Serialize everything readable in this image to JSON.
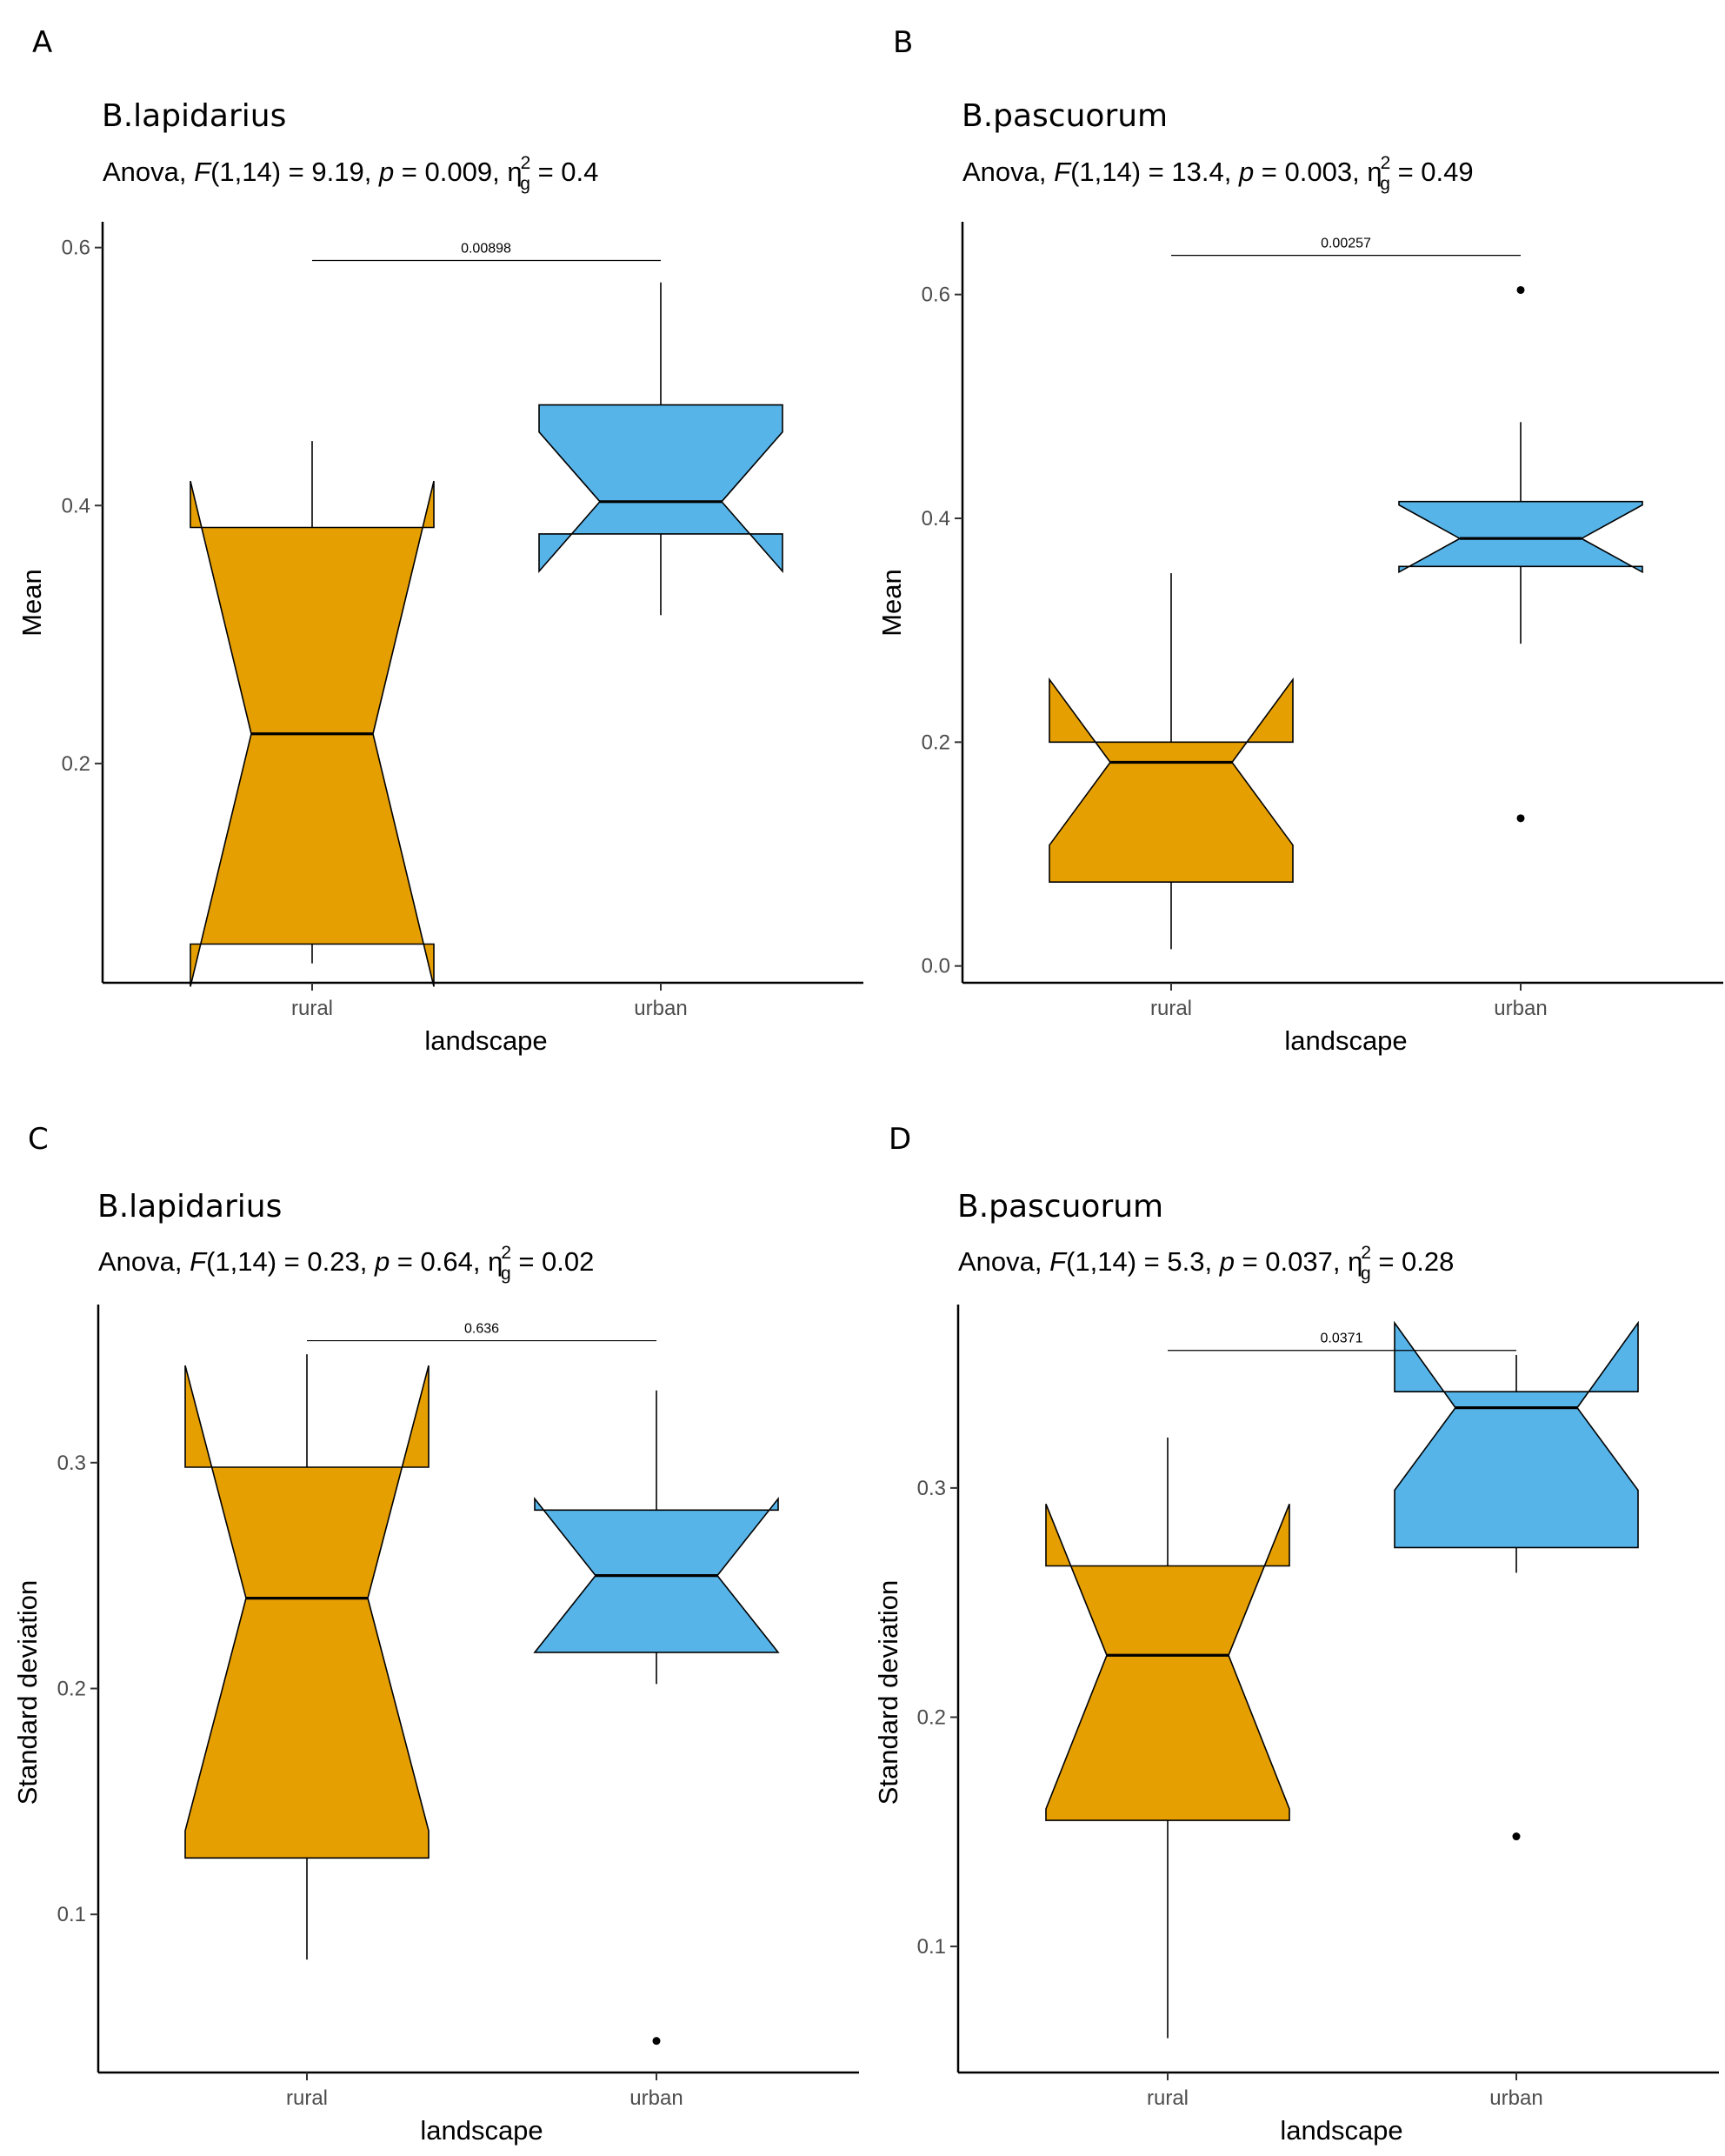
{
  "colors": {
    "rural": "#E69F00",
    "urban": "#56B4E9",
    "stroke": "#000000"
  },
  "chart_data": [
    {
      "panel": "A",
      "type": "boxplot",
      "notched": true,
      "title": "B.lapidarius",
      "subtitle": {
        "test": "Anova, ",
        "stat": "F",
        "df": "(1,14) = 9.19, ",
        "p_sym": "p",
        "p_val": " = 0.009, ",
        "eta": "η",
        "eta_sub": "g",
        "eta_sup": "2",
        "eta_val": " = 0.4"
      },
      "xlabel": "landscape",
      "ylabel": "Mean",
      "categories": [
        "rural",
        "urban"
      ],
      "ylim": [
        0.03,
        0.62
      ],
      "yticks": [
        0.2,
        0.4,
        0.6
      ],
      "ytick_labels": [
        "0.2",
        "0.4",
        "0.6"
      ],
      "boxes": [
        {
          "name": "rural",
          "whisker_low": 0.045,
          "q1": 0.06,
          "median": 0.223,
          "q3": 0.383,
          "whisker_high": 0.45,
          "notch_low": 0.027,
          "notch_high": 0.419,
          "outliers": []
        },
        {
          "name": "urban",
          "whisker_low": 0.315,
          "q1": 0.378,
          "median": 0.403,
          "q3": 0.478,
          "whisker_high": 0.573,
          "notch_low": 0.349,
          "notch_high": 0.457,
          "outliers": []
        }
      ],
      "bracket": {
        "label": "0.00898",
        "y": 0.59
      }
    },
    {
      "panel": "B",
      "type": "boxplot",
      "notched": true,
      "title": "B.pascuorum",
      "subtitle": {
        "test": "Anova, ",
        "stat": "F",
        "df": "(1,14) = 13.4, ",
        "p_sym": "p",
        "p_val": " = 0.003, ",
        "eta": "η",
        "eta_sub": "g",
        "eta_sup": "2",
        "eta_val": " = 0.49"
      },
      "xlabel": "landscape",
      "ylabel": "Mean",
      "categories": [
        "rural",
        "urban"
      ],
      "ylim": [
        -0.015,
        0.665
      ],
      "yticks": [
        0.0,
        0.2,
        0.4,
        0.6
      ],
      "ytick_labels": [
        "0.0",
        "0.2",
        "0.4",
        "0.6"
      ],
      "boxes": [
        {
          "name": "rural",
          "whisker_low": 0.015,
          "q1": 0.075,
          "median": 0.182,
          "q3": 0.2,
          "whisker_high": 0.351,
          "notch_low": 0.108,
          "notch_high": 0.256,
          "outliers": []
        },
        {
          "name": "urban",
          "whisker_low": 0.288,
          "q1": 0.357,
          "median": 0.382,
          "q3": 0.415,
          "whisker_high": 0.486,
          "notch_low": 0.352,
          "notch_high": 0.412,
          "outliers": [
            0.132,
            0.604
          ]
        }
      ],
      "bracket": {
        "label": "0.00257",
        "y": 0.635
      }
    },
    {
      "panel": "C",
      "type": "boxplot",
      "notched": true,
      "title": "B.lapidarius",
      "subtitle": {
        "test": "Anova, ",
        "stat": "F",
        "df": "(1,14) = 0.23, ",
        "p_sym": "p",
        "p_val": " = 0.64, ",
        "eta": "η",
        "eta_sub": "g",
        "eta_sup": "2",
        "eta_val": " = 0.02"
      },
      "xlabel": "landscape",
      "ylabel": "Standard deviation",
      "categories": [
        "rural",
        "urban"
      ],
      "ylim": [
        0.03,
        0.37
      ],
      "yticks": [
        0.1,
        0.2,
        0.3
      ],
      "ytick_labels": [
        "0.1",
        "0.2",
        "0.3"
      ],
      "boxes": [
        {
          "name": "rural",
          "whisker_low": 0.08,
          "q1": 0.125,
          "median": 0.24,
          "q3": 0.298,
          "whisker_high": 0.348,
          "notch_low": 0.137,
          "notch_high": 0.343,
          "outliers": []
        },
        {
          "name": "urban",
          "whisker_low": 0.202,
          "q1": 0.216,
          "median": 0.25,
          "q3": 0.279,
          "whisker_high": 0.332,
          "notch_low": 0.216,
          "notch_high": 0.284,
          "outliers": [
            0.044
          ]
        }
      ],
      "bracket": {
        "label": "0.636",
        "y": 0.354
      }
    },
    {
      "panel": "D",
      "type": "boxplot",
      "notched": true,
      "title": "B.pascuorum",
      "subtitle": {
        "test": "Anova, ",
        "stat": "F",
        "df": "(1,14) = 5.3, ",
        "p_sym": "p",
        "p_val": " = 0.037, ",
        "eta": "η",
        "eta_sub": "g",
        "eta_sup": "2",
        "eta_val": " = 0.28"
      },
      "xlabel": "landscape",
      "ylabel": "Standard deviation",
      "categories": [
        "rural",
        "urban"
      ],
      "ylim": [
        0.045,
        0.38
      ],
      "yticks": [
        0.1,
        0.2,
        0.3
      ],
      "ytick_labels": [
        "0.1",
        "0.2",
        "0.3"
      ],
      "boxes": [
        {
          "name": "rural",
          "whisker_low": 0.06,
          "q1": 0.155,
          "median": 0.227,
          "q3": 0.266,
          "whisker_high": 0.322,
          "notch_low": 0.16,
          "notch_high": 0.293,
          "outliers": []
        },
        {
          "name": "urban",
          "whisker_low": 0.263,
          "q1": 0.274,
          "median": 0.335,
          "q3": 0.342,
          "whisker_high": 0.358,
          "notch_low": 0.299,
          "notch_high": 0.372,
          "outliers": [
            0.148
          ]
        }
      ],
      "bracket": {
        "label": "0.0371",
        "y": 0.36
      }
    }
  ]
}
